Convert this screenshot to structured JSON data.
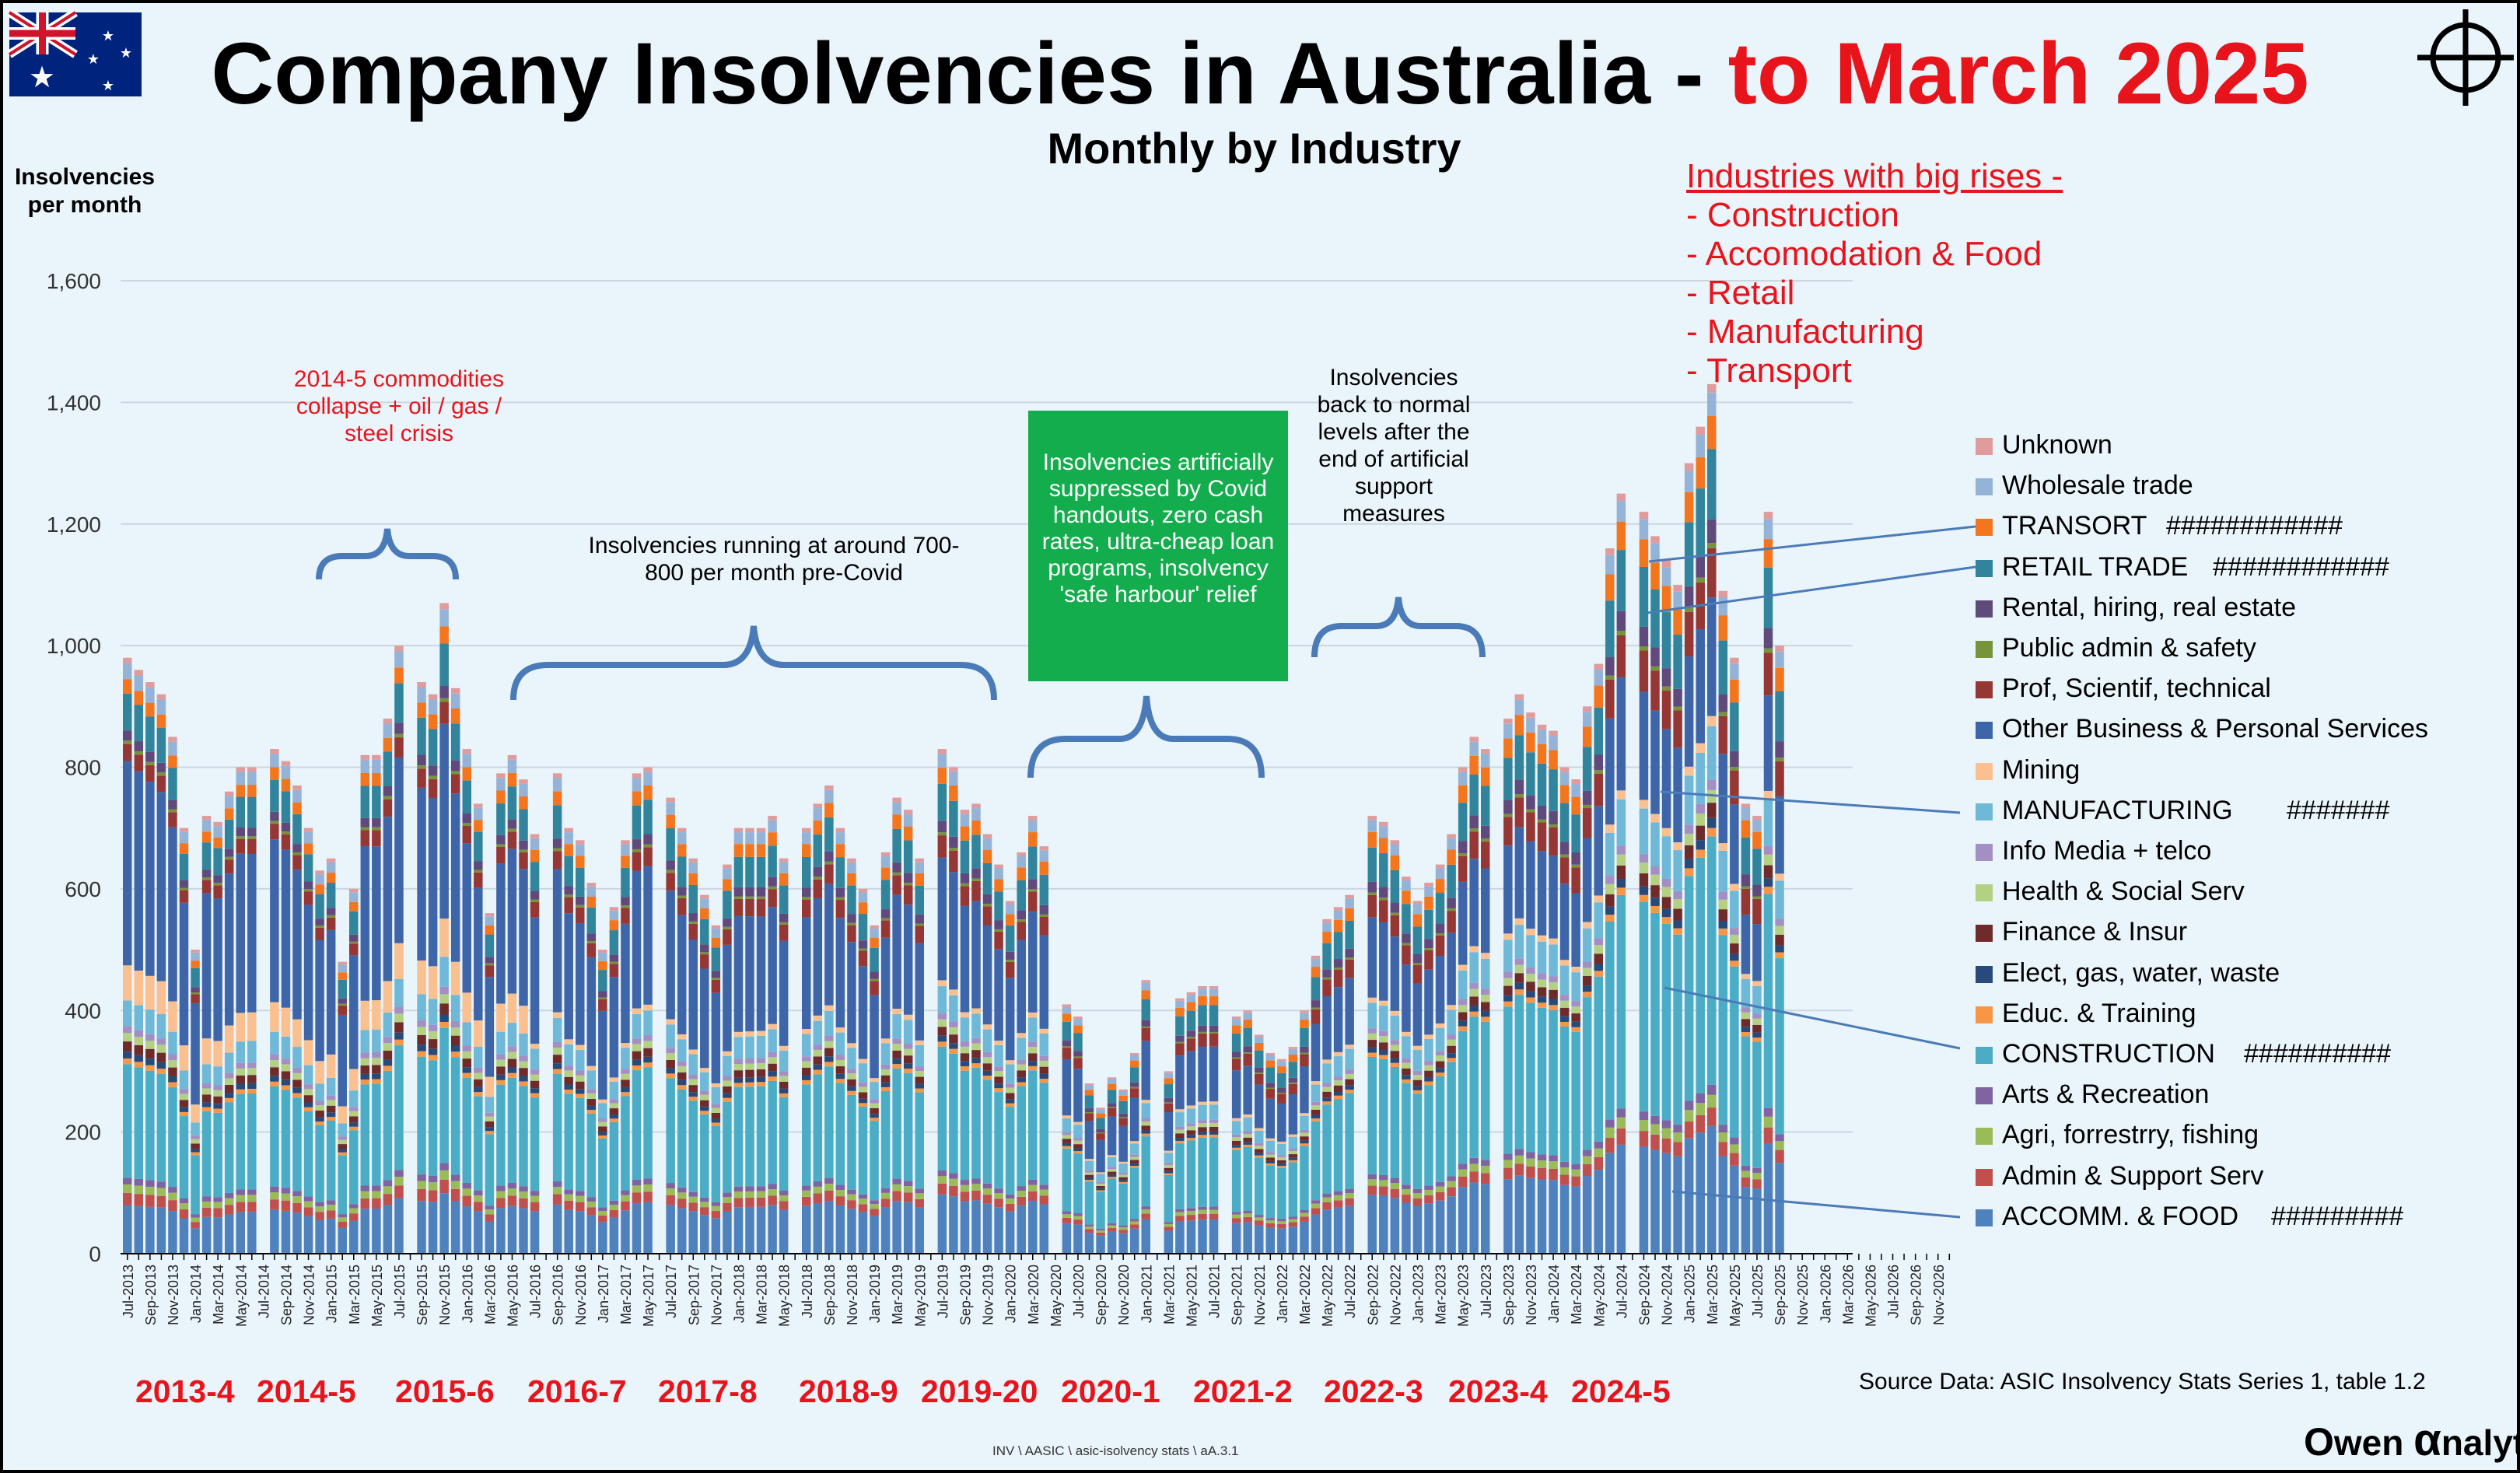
{
  "header": {
    "title_main": "Company Insolvencies in Australia - ",
    "title_red": "to March 2025",
    "subtitle": "Monthly by Industry",
    "y_label": "Insolvencies per month",
    "flag_icon": "australia-flag-icon",
    "crosshair_icon": "crosshair-icon"
  },
  "industries_box": {
    "heading": "Industries with big rises -",
    "items": [
      "- Construction",
      "- Accomodation & Food",
      "- Retail",
      "- Manufacturing",
      "- Transport"
    ]
  },
  "annotations": {
    "commodities": "2014-5 commodities collapse + oil / gas / steel crisis",
    "precovid": "Insolvencies  running at around 700-800 per month pre-Covid",
    "covid": "Insolvencies artificially suppressed by Covid handouts, zero cash rates, ultra-cheap loan programs, insolvency 'safe harbour' relief",
    "normal": "Insolvencies back to normal levels after the end of artificial support measures"
  },
  "financial_years": [
    "2013-4",
    "2014-5",
    "2015-6",
    "2016-7",
    "2017-8",
    "2018-9",
    "2019-20",
    "2020-1",
    "2021-2",
    "2022-3",
    "2023-4",
    "2024-5"
  ],
  "footer": {
    "source": "Source Data: ASIC Insolvency Stats Series 1, table 1.2",
    "path": "INV \\ AASIC \\ asic-isolvency stats \\ aA.3.1",
    "brand_o": "O",
    "brand_wen": "wen ",
    "brand_a": "α",
    "brand_nalytics": "nalytics",
    "brand_reg": "®"
  },
  "colors": {
    "title_red": "#e8141c",
    "background": "#eaf4fb",
    "green_box": "#14ad4e",
    "brace": "#4a7bb8"
  },
  "chart_data": {
    "type": "bar",
    "stacked": true,
    "title": "Company Insolvencies in Australia - to March 2025",
    "subtitle": "Monthly by Industry",
    "ylabel": "Insolvencies per month",
    "xlabel": "",
    "ylim": [
      0,
      1600
    ],
    "yticks": [
      0,
      200,
      400,
      600,
      800,
      1000,
      1200,
      1400,
      1600
    ],
    "ytick_labels": [
      "0",
      "200",
      "400",
      "600",
      "800",
      "1,000",
      "1,200",
      "1,400",
      "1,600"
    ],
    "grid": "horizontal",
    "legend_position": "right",
    "start_month": "Jul-2013",
    "end_month": "Dec-2026",
    "x_label_every": 2,
    "x": [
      "Jul-2013",
      "Aug-2013",
      "Sep-2013",
      "Oct-2013",
      "Nov-2013",
      "Dec-2013",
      "Jan-2014",
      "Feb-2014",
      "Mar-2014",
      "Apr-2014",
      "May-2014",
      "Jun-2014",
      "Jul-2014",
      "Aug-2014",
      "Sep-2014",
      "Oct-2014",
      "Nov-2014",
      "Dec-2014",
      "Jan-2015",
      "Feb-2015",
      "Mar-2015",
      "Apr-2015",
      "May-2015",
      "Jun-2015",
      "Jul-2015",
      "Aug-2015",
      "Sep-2015",
      "Oct-2015",
      "Nov-2015",
      "Dec-2015",
      "Jan-2016",
      "Feb-2016",
      "Mar-2016",
      "Apr-2016",
      "May-2016",
      "Jun-2016",
      "Jul-2016",
      "Aug-2016",
      "Sep-2016",
      "Oct-2016",
      "Nov-2016",
      "Dec-2016",
      "Jan-2017",
      "Feb-2017",
      "Mar-2017",
      "Apr-2017",
      "May-2017",
      "Jun-2017",
      "Jul-2017",
      "Aug-2017",
      "Sep-2017",
      "Oct-2017",
      "Nov-2017",
      "Dec-2017",
      "Jan-2018",
      "Feb-2018",
      "Mar-2018",
      "Apr-2018",
      "May-2018",
      "Jun-2018",
      "Jul-2018",
      "Aug-2018",
      "Sep-2018",
      "Oct-2018",
      "Nov-2018",
      "Dec-2018",
      "Jan-2019",
      "Feb-2019",
      "Mar-2019",
      "Apr-2019",
      "May-2019",
      "Jun-2019",
      "Jul-2019",
      "Aug-2019",
      "Sep-2019",
      "Oct-2019",
      "Nov-2019",
      "Dec-2019",
      "Jan-2020",
      "Feb-2020",
      "Mar-2020",
      "Apr-2020",
      "May-2020",
      "Jun-2020",
      "Jul-2020",
      "Aug-2020",
      "Sep-2020",
      "Oct-2020",
      "Nov-2020",
      "Dec-2020",
      "Jan-2021",
      "Feb-2021",
      "Mar-2021",
      "Apr-2021",
      "May-2021",
      "Jun-2021",
      "Jul-2021",
      "Aug-2021",
      "Sep-2021",
      "Oct-2021",
      "Nov-2021",
      "Dec-2021",
      "Jan-2022",
      "Feb-2022",
      "Mar-2022",
      "Apr-2022",
      "May-2022",
      "Jun-2022",
      "Jul-2022",
      "Aug-2022",
      "Sep-2022",
      "Oct-2022",
      "Nov-2022",
      "Dec-2022",
      "Jan-2023",
      "Feb-2023",
      "Mar-2023",
      "Apr-2023",
      "May-2023",
      "Jun-2023",
      "Jul-2023",
      "Aug-2023",
      "Sep-2023",
      "Oct-2023",
      "Nov-2023",
      "Dec-2023",
      "Jan-2024",
      "Feb-2024",
      "Mar-2024",
      "Apr-2024",
      "May-2024",
      "Jun-2024",
      "Jul-2024",
      "Aug-2024",
      "Sep-2024",
      "Oct-2024",
      "Nov-2024",
      "Dec-2024",
      "Jan-2025",
      "Feb-2025",
      "Mar-2025"
    ],
    "totals": [
      980,
      960,
      940,
      920,
      850,
      700,
      500,
      720,
      710,
      760,
      800,
      800,
      0,
      830,
      810,
      770,
      700,
      630,
      650,
      480,
      600,
      820,
      820,
      880,
      1000,
      0,
      940,
      920,
      1070,
      930,
      830,
      740,
      560,
      790,
      820,
      780,
      690,
      0,
      790,
      700,
      680,
      610,
      500,
      570,
      680,
      790,
      800,
      0,
      750,
      700,
      650,
      590,
      540,
      640,
      700,
      700,
      700,
      720,
      650,
      0,
      700,
      740,
      770,
      700,
      650,
      600,
      540,
      660,
      750,
      730,
      650,
      0,
      830,
      800,
      730,
      740,
      690,
      640,
      580,
      660,
      720,
      670,
      0,
      410,
      390,
      280,
      240,
      290,
      270,
      330,
      450,
      0,
      300,
      420,
      430,
      440,
      440,
      0,
      390,
      400,
      360,
      330,
      320,
      340,
      400,
      490,
      550,
      570,
      590,
      0,
      720,
      710,
      680,
      620,
      580,
      610,
      640,
      690,
      800,
      850,
      830,
      0,
      880,
      920,
      890,
      870,
      860,
      800,
      780,
      900,
      970,
      1160,
      1250,
      0,
      1220,
      1180,
      1140,
      1100,
      1300,
      1360,
      1430,
      1090,
      980,
      740,
      720,
      1220,
      1000
    ],
    "series": [
      {
        "name": "Unknown",
        "color": "#e09c9c"
      },
      {
        "name": "Wholesale trade",
        "color": "#95b3d7"
      },
      {
        "name": "TRANSORT",
        "color": "#f3761f"
      },
      {
        "name": "RETAIL TRADE",
        "color": "#31849b"
      },
      {
        "name": "Rental, hiring, real estate",
        "color": "#604a7b"
      },
      {
        "name": "Public admin & safety",
        "color": "#77933c"
      },
      {
        "name": "Prof, Scientif, technical",
        "color": "#953735"
      },
      {
        "name": "Other Business & Personal Services",
        "color": "#3e65a8"
      },
      {
        "name": "Mining",
        "color": "#fac090"
      },
      {
        "name": "MANUFACTURING",
        "color": "#6fb8d8"
      },
      {
        "name": "Info Media + telco",
        "color": "#a48fc4"
      },
      {
        "name": "Health & Social Serv",
        "color": "#b3d083"
      },
      {
        "name": "Finance & Insur",
        "color": "#6e2b2a"
      },
      {
        "name": "Elect, gas, water, waste",
        "color": "#274a7a"
      },
      {
        "name": "Educ. & Training",
        "color": "#f79646"
      },
      {
        "name": "CONSTRUCTION",
        "color": "#4bacc6"
      },
      {
        "name": "Arts & Recreation",
        "color": "#8064a2"
      },
      {
        "name": "Agri, forrestrry, fishing",
        "color": "#9bbb59"
      },
      {
        "name": "Admin & Support Serv",
        "color": "#c0504d"
      },
      {
        "name": "ACCOMM. & FOOD",
        "color": "#4f81bd"
      }
    ],
    "legend_marks": {
      "TRANSORT": "############",
      "RETAIL TRADE": "############",
      "MANUFACTURING": "#######",
      "CONSTRUCTION": "##########",
      "ACCOMM. & FOOD": "#########"
    }
  }
}
